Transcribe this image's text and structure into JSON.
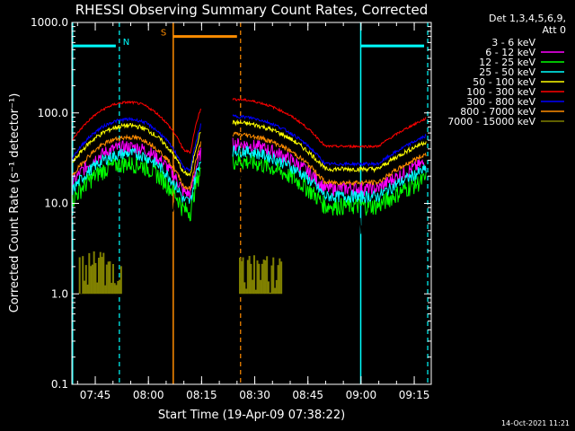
{
  "chart_data": {
    "type": "line",
    "title": "RHESSI Observing Summary Count Rates, Corrected",
    "xlabel": "Start Time (19-Apr-09 07:38:22)",
    "ylabel": "Corrected Count Rate (s⁻¹ detector⁻¹)",
    "y_scale": "log",
    "ylim": [
      0.1,
      1000
    ],
    "xlim_minutes": [
      38.4,
      139.8
    ],
    "x_ticks": [
      {
        "label": "07:45",
        "minute": 45
      },
      {
        "label": "08:00",
        "minute": 60
      },
      {
        "label": "08:15",
        "minute": 75
      },
      {
        "label": "08:30",
        "minute": 90
      },
      {
        "label": "08:45",
        "minute": 105
      },
      {
        "label": "09:00",
        "minute": 120
      },
      {
        "label": "09:15",
        "minute": 135
      }
    ],
    "y_ticks": [
      "1000.0",
      "100.0",
      "10.0",
      "1.0",
      "0.1"
    ],
    "legend_header": [
      "Det 1,3,4,5,6,9,",
      "Att 0"
    ],
    "series": [
      {
        "name": "3 - 6 keV",
        "color": "#000000",
        "base": 7
      },
      {
        "name": "6 - 12 keV",
        "color": "#ff00ff",
        "base": 17
      },
      {
        "name": "12 - 25 keV",
        "color": "#00ff00",
        "base": 11
      },
      {
        "name": "25 - 50 keV",
        "color": "#00ffff",
        "base": 14
      },
      {
        "name": "50 - 100 keV",
        "color": "#ffff00",
        "base": 28
      },
      {
        "name": "100 - 300 keV",
        "color": "#ff0000",
        "base": 50
      },
      {
        "name": "300 - 800 keV",
        "color": "#0000ff",
        "base": 32
      },
      {
        "name": "800 - 7000 keV",
        "color": "#ff8c00",
        "base": 20
      },
      {
        "name": "7000 - 15000 keV",
        "color": "#808000",
        "base": 1
      }
    ],
    "segments": [
      [
        38.6,
        74.8
      ],
      [
        83.8,
        138.5
      ]
    ],
    "markers": [
      {
        "label": "N",
        "color": "#00ffff",
        "start": 38.6,
        "end": 51.8,
        "bar_y": 550
      },
      {
        "label": "",
        "color": "#00ffff",
        "start": 119.9,
        "end": 138.8,
        "bar_y": 550
      },
      {
        "label": "S",
        "color": "#ff8c00",
        "start": 67.0,
        "end": 86.0,
        "bar_y": 700
      }
    ],
    "timestamp": "14-Oct-2021 11:21"
  }
}
